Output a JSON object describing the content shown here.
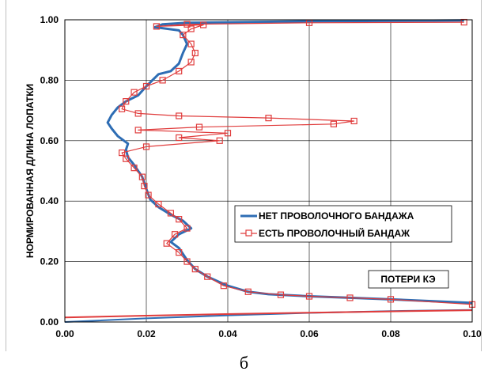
{
  "chart_data": {
    "type": "line",
    "ylabel": "НОРМИРОВАННАЯ ДЛИНА ЛОПАТКИ",
    "xlabel": "",
    "xlim": [
      0,
      0.1
    ],
    "ylim": [
      0,
      1
    ],
    "x_ticks": [
      "0.00",
      "0.02",
      "0.04",
      "0.06",
      "0.08",
      "0.10"
    ],
    "y_ticks": [
      "0.00",
      "0.20",
      "0.40",
      "0.60",
      "0.80",
      "1.00"
    ],
    "grid": true,
    "legend_position": "center-right",
    "annotation": "ПОТЕРИ КЭ",
    "series": [
      {
        "name": "НЕТ ПРОВОЛОЧНОГО БАНДАЖА",
        "color": "#2e6db4",
        "marker": "none",
        "points": [
          [
            0.1,
            0.063
          ],
          [
            0.08,
            0.075
          ],
          [
            0.07,
            0.08
          ],
          [
            0.06,
            0.085
          ],
          [
            0.05,
            0.092
          ],
          [
            0.045,
            0.1
          ],
          [
            0.04,
            0.12
          ],
          [
            0.035,
            0.15
          ],
          [
            0.032,
            0.175
          ],
          [
            0.03,
            0.205
          ],
          [
            0.028,
            0.245
          ],
          [
            0.026,
            0.265
          ],
          [
            0.028,
            0.29
          ],
          [
            0.031,
            0.31
          ],
          [
            0.029,
            0.335
          ],
          [
            0.026,
            0.355
          ],
          [
            0.023,
            0.38
          ],
          [
            0.021,
            0.405
          ],
          [
            0.02,
            0.44
          ],
          [
            0.019,
            0.48
          ],
          [
            0.017,
            0.52
          ],
          [
            0.0155,
            0.545
          ],
          [
            0.015,
            0.57
          ],
          [
            0.0155,
            0.59
          ],
          [
            0.013,
            0.615
          ],
          [
            0.0115,
            0.64
          ],
          [
            0.0105,
            0.66
          ],
          [
            0.0115,
            0.685
          ],
          [
            0.013,
            0.71
          ],
          [
            0.015,
            0.73
          ],
          [
            0.018,
            0.75
          ],
          [
            0.02,
            0.78
          ],
          [
            0.023,
            0.82
          ],
          [
            0.026,
            0.83
          ],
          [
            0.028,
            0.855
          ],
          [
            0.029,
            0.89
          ],
          [
            0.03,
            0.92
          ],
          [
            0.029,
            0.95
          ],
          [
            0.028,
            0.965
          ],
          [
            0.0225,
            0.975
          ],
          [
            0.022,
            0.975
          ],
          [
            0.024,
            0.985
          ],
          [
            0.03,
            0.99
          ],
          [
            0.06,
            0.995
          ],
          [
            0.098,
            0.998
          ]
        ]
      },
      {
        "name": "ЕСТЬ ПРОВОЛОЧНЫЙ БАНДАЖ",
        "color": "#e03c3c",
        "marker": "square",
        "points": [
          [
            0.1,
            0.058
          ],
          [
            0.08,
            0.075
          ],
          [
            0.07,
            0.08
          ],
          [
            0.06,
            0.085
          ],
          [
            0.053,
            0.09
          ],
          [
            0.045,
            0.1
          ],
          [
            0.039,
            0.12
          ],
          [
            0.035,
            0.15
          ],
          [
            0.032,
            0.175
          ],
          [
            0.03,
            0.2
          ],
          [
            0.028,
            0.23
          ],
          [
            0.025,
            0.26
          ],
          [
            0.027,
            0.29
          ],
          [
            0.03,
            0.31
          ],
          [
            0.028,
            0.34
          ],
          [
            0.026,
            0.36
          ],
          [
            0.023,
            0.39
          ],
          [
            0.0205,
            0.42
          ],
          [
            0.0195,
            0.45
          ],
          [
            0.019,
            0.48
          ],
          [
            0.017,
            0.51
          ],
          [
            0.015,
            0.54
          ],
          [
            0.014,
            0.56
          ],
          [
            0.02,
            0.58
          ],
          [
            0.038,
            0.6
          ],
          [
            0.028,
            0.61
          ],
          [
            0.04,
            0.625
          ],
          [
            0.018,
            0.635
          ],
          [
            0.033,
            0.645
          ],
          [
            0.066,
            0.655
          ],
          [
            0.071,
            0.665
          ],
          [
            0.05,
            0.675
          ],
          [
            0.028,
            0.682
          ],
          [
            0.018,
            0.69
          ],
          [
            0.014,
            0.705
          ],
          [
            0.015,
            0.73
          ],
          [
            0.017,
            0.76
          ],
          [
            0.02,
            0.78
          ],
          [
            0.024,
            0.8
          ],
          [
            0.028,
            0.83
          ],
          [
            0.031,
            0.86
          ],
          [
            0.032,
            0.89
          ],
          [
            0.031,
            0.92
          ],
          [
            0.029,
            0.95
          ],
          [
            0.031,
            0.97
          ],
          [
            0.034,
            0.983
          ],
          [
            0.0225,
            0.978
          ],
          [
            0.03,
            0.985
          ],
          [
            0.06,
            0.99
          ],
          [
            0.098,
            0.992
          ]
        ]
      },
      {
        "name": "",
        "color": "#2e6db4",
        "marker": "none",
        "points": [
          [
            0.0,
            0.0
          ],
          [
            0.02,
            0.012
          ],
          [
            0.04,
            0.022
          ],
          [
            0.06,
            0.03
          ],
          [
            0.08,
            0.036
          ],
          [
            0.1,
            0.04
          ]
        ]
      },
      {
        "name": "",
        "color": "#e03c3c",
        "marker": "none",
        "points": [
          [
            0.0,
            0.015
          ],
          [
            0.02,
            0.021
          ],
          [
            0.038,
            0.026
          ],
          [
            0.06,
            0.031
          ],
          [
            0.08,
            0.035
          ],
          [
            0.1,
            0.039
          ]
        ]
      }
    ]
  },
  "caption": "б"
}
